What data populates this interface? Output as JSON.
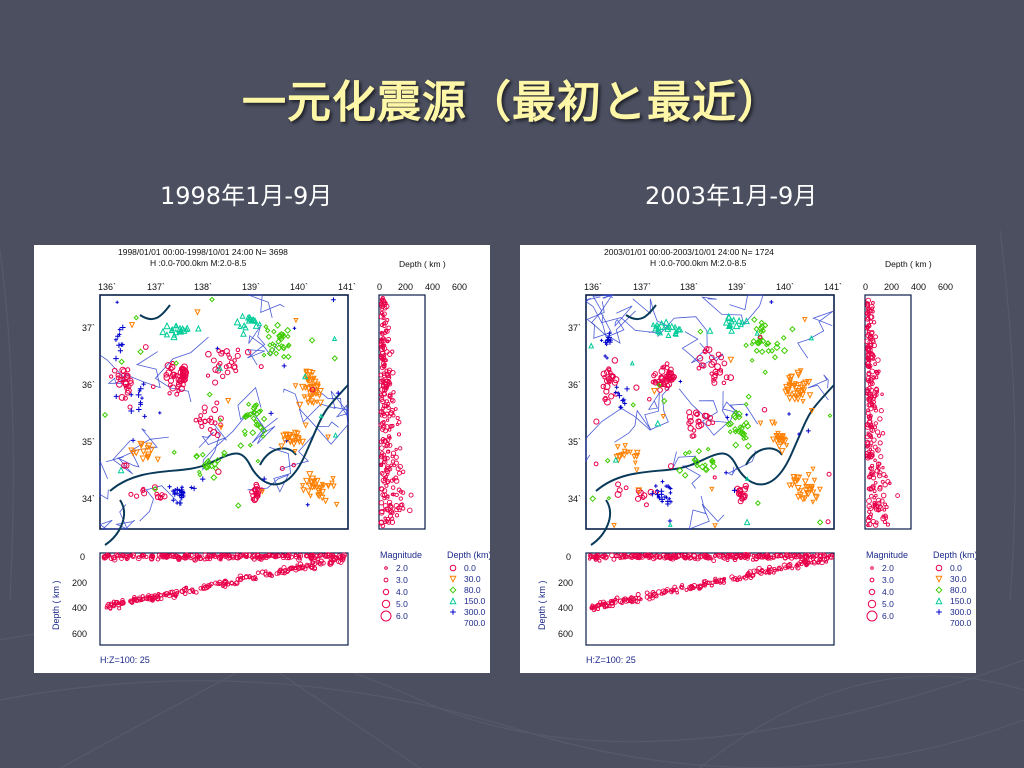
{
  "slide": {
    "title": "一元化震源（最初と最近）"
  },
  "panels": [
    {
      "subtitle": "1998年1月-9月",
      "header_line1": "1998/01/01 00:00-1998/10/01 24:00   N=  3698",
      "header_line2": "H :0.0-700.0km  M:2.0-8.5",
      "scale_label": "H:Z=100:  25",
      "events": 3698
    },
    {
      "subtitle": "2003年1月-9月",
      "header_line1": "2003/01/01 00:00-2003/10/01 24:00   N=  1724",
      "header_line2": "H :0.0-700.0km  M:2.0-8.5",
      "scale_label": "H:Z=100:  25",
      "events": 1724
    }
  ],
  "map": {
    "lon_ticks": [
      "136`",
      "137`",
      "138`",
      "139`",
      "140`",
      "141`"
    ],
    "lat_ticks": [
      "37`",
      "36`",
      "35`",
      "34`"
    ],
    "depth_axis_title": "Depth ( km )",
    "depth_axis_ticks": [
      "0",
      "200",
      "400",
      "600"
    ],
    "section_ticks": [
      "0",
      "200",
      "400",
      "600"
    ],
    "section_ylabel": "Depth ( km )"
  },
  "legend": {
    "magnitude_title": "Magnitude",
    "magnitudes": [
      "2.0",
      "3.0",
      "4.0",
      "5.0",
      "6.0"
    ],
    "depth_title": "Depth (km)",
    "depths": [
      "0.0",
      "30.0",
      "80.0",
      "150.0",
      "300.0",
      "700.0"
    ],
    "depth_colors": [
      "#e8004a",
      "#ff8000",
      "#3fcc00",
      "#00cc99",
      "#0000cc"
    ]
  }
}
